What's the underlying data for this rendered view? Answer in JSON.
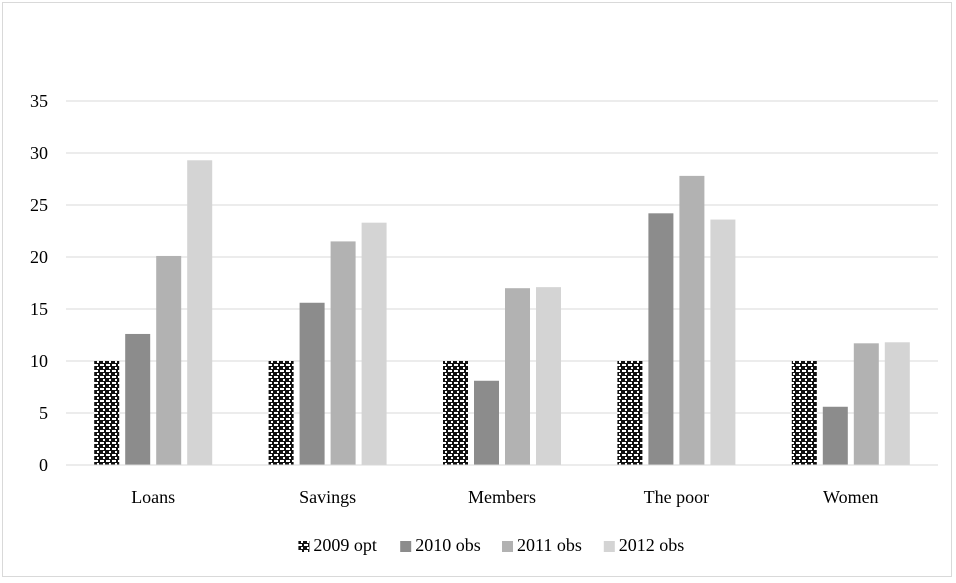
{
  "chart_data": {
    "type": "bar",
    "title": "",
    "xlabel": "",
    "ylabel": "",
    "categories": [
      "Loans",
      "Savings",
      "Members",
      "The poor",
      "Women"
    ],
    "series": [
      {
        "name": "2009 opt",
        "values": [
          10,
          10,
          10,
          10,
          10
        ],
        "color": "#1a1a1a",
        "pattern": "checker"
      },
      {
        "name": "2010 obs",
        "values": [
          12.6,
          15.6,
          8.1,
          24.2,
          5.6
        ],
        "color": "#8c8c8c"
      },
      {
        "name": "2011 obs",
        "values": [
          20.1,
          21.5,
          17,
          27.8,
          11.7
        ],
        "color": "#b2b2b2"
      },
      {
        "name": "2012 obs",
        "values": [
          29.3,
          23.3,
          17.1,
          23.6,
          11.8
        ],
        "color": "#d4d4d4"
      }
    ],
    "ylim": [
      0,
      35
    ],
    "yticks": [
      0,
      5,
      10,
      15,
      20,
      25,
      30,
      35
    ],
    "grid": true,
    "legend": "bottom"
  }
}
